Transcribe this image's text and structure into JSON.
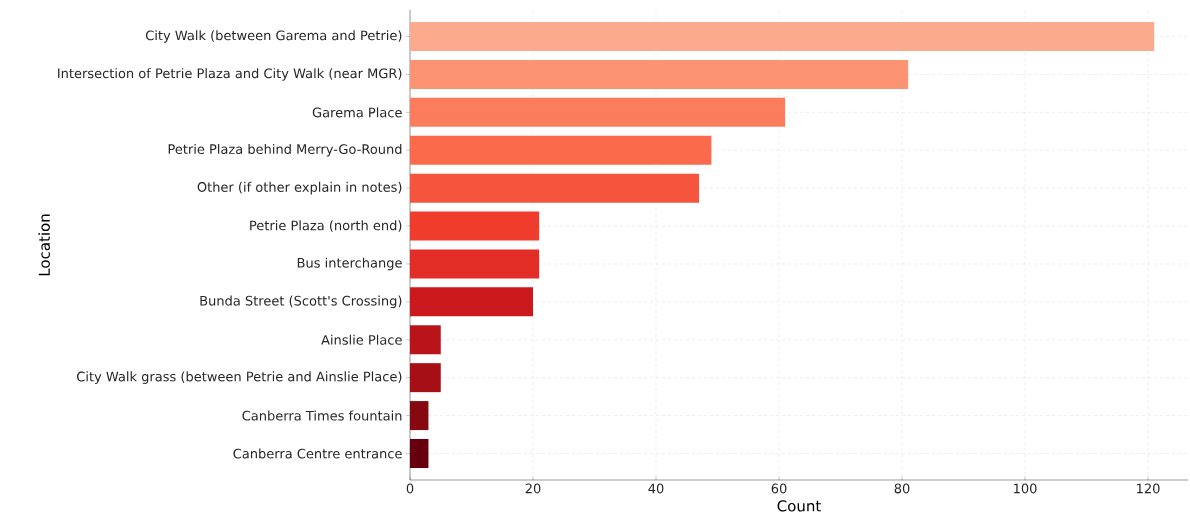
{
  "chart_data": {
    "type": "bar",
    "orientation": "horizontal",
    "xlabel": "Count",
    "ylabel": "Location",
    "categories": [
      "City Walk (between Garema and Petrie)",
      "Intersection of Petrie Plaza and City Walk (near MGR)",
      "Garema Place",
      "Petrie Plaza behind Merry-Go-Round",
      "Other (if other explain in notes)",
      "Petrie Plaza (north end)",
      "Bus interchange",
      "Bunda Street (Scott's Crossing)",
      "Ainslie Place",
      "City Walk grass (between Petrie and Ainslie Place)",
      "Canberra Times fountain",
      "Canberra Centre entrance"
    ],
    "values": [
      121,
      81,
      61,
      49,
      47,
      21,
      21,
      20,
      5,
      5,
      3,
      3
    ],
    "colors": [
      "#fcaa8e",
      "#fc9474",
      "#fb7d5d",
      "#fb6a4a",
      "#f5553d",
      "#ef3c2c",
      "#e22e27",
      "#cb181d",
      "#b91419",
      "#a50f15",
      "#860811",
      "#67000d"
    ],
    "xlim": [
      0,
      126.5
    ],
    "xticks": [
      0,
      20,
      40,
      60,
      80,
      100,
      120
    ],
    "grid": true
  }
}
